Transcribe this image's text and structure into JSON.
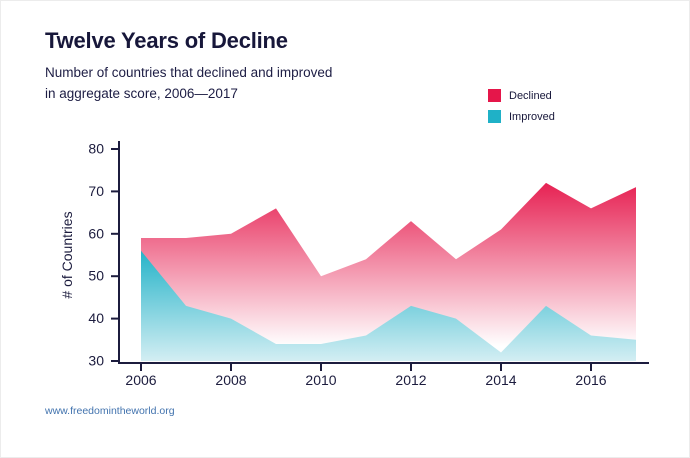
{
  "page": {
    "title": "Twelve Years of Decline",
    "subtitle_line1": "Number of countries that declined and improved",
    "subtitle_line2": "in aggregate score, 2006—2017",
    "footer_link": "www.freedomintheworld.org"
  },
  "legend": [
    {
      "label": "Declined",
      "color": "#e5164a"
    },
    {
      "label": "Improved",
      "color": "#1fb1c7"
    }
  ],
  "chart_data": {
    "type": "area",
    "x": [
      2006,
      2007,
      2008,
      2009,
      2010,
      2011,
      2012,
      2013,
      2014,
      2015,
      2016,
      2017
    ],
    "series": [
      {
        "name": "Declined",
        "color": "#e5164a",
        "fade_to": "#ffffff",
        "values": [
          59,
          59,
          60,
          66,
          50,
          54,
          63,
          54,
          61,
          72,
          66,
          71
        ]
      },
      {
        "name": "Improved",
        "color": "#1fb1c7",
        "fade_to": "#d3eef3",
        "values": [
          56,
          43,
          40,
          34,
          34,
          36,
          43,
          40,
          32,
          43,
          36,
          35
        ]
      }
    ],
    "title": "Twelve Years of Decline",
    "xlabel": "",
    "ylabel": "# of Countries",
    "ylim": [
      30,
      80
    ],
    "yticks": [
      80,
      70,
      60,
      50,
      40,
      30
    ],
    "xticks": [
      2006,
      2008,
      2010,
      2012,
      2014,
      2016
    ],
    "legend_position": "top-right",
    "grid": false
  }
}
